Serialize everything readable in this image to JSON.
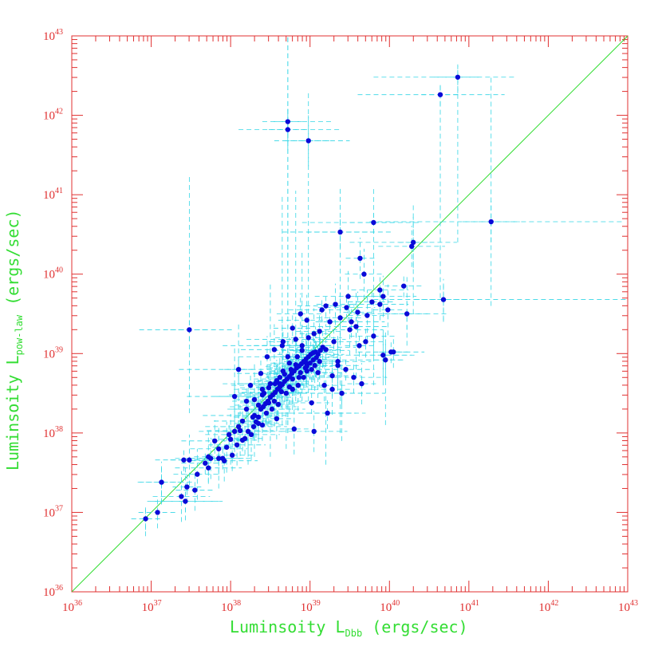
{
  "chart_data": {
    "type": "scatter",
    "title": "",
    "xlabel": {
      "main": "Luminsoity L",
      "sub": "Dbb",
      "tail": " (ergs/sec)"
    },
    "ylabel": {
      "main": "Luminsoity L",
      "sub": "pow-law",
      "tail": " (ergs/sec)"
    },
    "x_scale": "log",
    "y_scale": "log",
    "xlim_log10": [
      36,
      43
    ],
    "ylim_log10": [
      36,
      43
    ],
    "tick_base": "10",
    "x_tick_exponents": [
      "36",
      "37",
      "38",
      "39",
      "40",
      "41",
      "42",
      "43"
    ],
    "y_tick_exponents": [
      "36",
      "37",
      "38",
      "39",
      "40",
      "41",
      "42",
      "43"
    ],
    "reference_line": "y = x",
    "colors": {
      "frame": "#e03030",
      "labels": "#33dd33",
      "points": "#0a0ad8",
      "errorbars": "#33d6e6"
    },
    "points_log10": [
      [
        36.93,
        36.92
      ],
      [
        37.08,
        37.0
      ],
      [
        37.13,
        37.38
      ],
      [
        37.38,
        37.2
      ],
      [
        37.43,
        37.14
      ],
      [
        37.45,
        37.32
      ],
      [
        37.55,
        37.28
      ],
      [
        37.58,
        37.48
      ],
      [
        37.41,
        37.66
      ],
      [
        37.72,
        37.56
      ],
      [
        37.75,
        37.68
      ],
      [
        37.48,
        37.66
      ],
      [
        37.68,
        37.62
      ],
      [
        37.85,
        37.68
      ],
      [
        37.92,
        37.65
      ],
      [
        37.95,
        37.82
      ],
      [
        37.9,
        37.68
      ],
      [
        38.02,
        37.72
      ],
      [
        38.08,
        37.85
      ],
      [
        38.12,
        38.03
      ],
      [
        38.15,
        37.91
      ],
      [
        38.18,
        37.93
      ],
      [
        38.22,
        38.02
      ],
      [
        38.26,
        37.98
      ],
      [
        38.29,
        38.08
      ],
      [
        38.32,
        38.14
      ],
      [
        38.3,
        38.22
      ],
      [
        38.35,
        38.2
      ],
      [
        38.38,
        38.3
      ],
      [
        38.41,
        38.33
      ],
      [
        38.44,
        38.37
      ],
      [
        38.47,
        38.4
      ],
      [
        38.5,
        38.45
      ],
      [
        38.53,
        38.48
      ],
      [
        38.56,
        38.51
      ],
      [
        38.59,
        38.55
      ],
      [
        38.62,
        38.58
      ],
      [
        38.65,
        38.61
      ],
      [
        38.68,
        38.65
      ],
      [
        38.71,
        38.68
      ],
      [
        38.74,
        38.71
      ],
      [
        38.77,
        38.75
      ],
      [
        38.8,
        38.78
      ],
      [
        38.83,
        38.82
      ],
      [
        38.86,
        38.84
      ],
      [
        38.89,
        38.87
      ],
      [
        38.92,
        38.9
      ],
      [
        38.95,
        38.93
      ],
      [
        38.98,
        38.96
      ],
      [
        39.01,
        38.99
      ],
      [
        39.04,
        39.01
      ],
      [
        39.07,
        39.02
      ],
      [
        39.1,
        38.99
      ],
      [
        39.13,
        39.04
      ],
      [
        39.16,
        39.08
      ],
      [
        39.2,
        39.05
      ],
      [
        38.2,
        38.3
      ],
      [
        38.35,
        38.12
      ],
      [
        38.48,
        38.38
      ],
      [
        38.55,
        38.4
      ],
      [
        38.6,
        38.36
      ],
      [
        38.7,
        38.5
      ],
      [
        38.78,
        38.55
      ],
      [
        38.85,
        38.6
      ],
      [
        38.92,
        38.7
      ],
      [
        38.96,
        38.78
      ],
      [
        39.02,
        38.8
      ],
      [
        39.06,
        38.85
      ],
      [
        38.4,
        38.55
      ],
      [
        38.5,
        38.62
      ],
      [
        38.66,
        38.78
      ],
      [
        38.74,
        38.88
      ],
      [
        38.84,
        38.96
      ],
      [
        38.9,
        39.1
      ],
      [
        38.98,
        39.2
      ],
      [
        39.05,
        39.25
      ],
      [
        38.25,
        38.6
      ],
      [
        38.38,
        38.75
      ],
      [
        38.46,
        38.96
      ],
      [
        38.55,
        39.05
      ],
      [
        38.66,
        39.15
      ],
      [
        38.78,
        39.32
      ],
      [
        38.88,
        39.5
      ],
      [
        38.96,
        39.42
      ],
      [
        39.15,
        39.55
      ],
      [
        39.25,
        39.4
      ],
      [
        39.32,
        39.62
      ],
      [
        39.38,
        39.45
      ],
      [
        39.46,
        39.58
      ],
      [
        39.52,
        39.4
      ],
      [
        39.6,
        39.52
      ],
      [
        39.72,
        39.48
      ],
      [
        39.78,
        39.65
      ],
      [
        39.88,
        39.8
      ],
      [
        39.92,
        39.72
      ],
      [
        39.98,
        39.55
      ],
      [
        40.18,
        39.85
      ],
      [
        40.22,
        39.5
      ],
      [
        40.68,
        39.68
      ],
      [
        39.5,
        39.3
      ],
      [
        39.62,
        39.1
      ],
      [
        39.7,
        39.15
      ],
      [
        39.8,
        39.22
      ],
      [
        39.92,
        38.98
      ],
      [
        40.02,
        39.02
      ],
      [
        40.05,
        39.02
      ],
      [
        39.95,
        38.92
      ],
      [
        39.35,
        38.85
      ],
      [
        39.45,
        38.8
      ],
      [
        39.55,
        38.7
      ],
      [
        39.65,
        38.62
      ],
      [
        39.28,
        38.55
      ],
      [
        39.4,
        38.5
      ],
      [
        39.22,
        38.25
      ],
      [
        39.05,
        38.02
      ],
      [
        38.8,
        38.05
      ],
      [
        39.02,
        38.38
      ],
      [
        39.18,
        38.6
      ],
      [
        39.28,
        38.72
      ],
      [
        39.35,
        38.9
      ],
      [
        38.1,
        38.8
      ],
      [
        38.05,
        38.46
      ],
      [
        38.72,
        38.96
      ],
      [
        38.65,
        39.1
      ],
      [
        38.82,
        39.18
      ],
      [
        38.72,
        41.92
      ],
      [
        38.72,
        41.82
      ],
      [
        38.98,
        41.68
      ],
      [
        39.2,
        39.6
      ],
      [
        39.38,
        40.53
      ],
      [
        39.63,
        40.2
      ],
      [
        39.68,
        40.0
      ],
      [
        39.8,
        40.65
      ],
      [
        39.88,
        39.62
      ],
      [
        40.28,
        40.35
      ],
      [
        40.3,
        40.4
      ],
      [
        40.64,
        42.26
      ],
      [
        40.86,
        42.48
      ],
      [
        41.28,
        40.66
      ],
      [
        39.48,
        39.72
      ],
      [
        39.58,
        39.34
      ],
      [
        39.3,
        39.15
      ],
      [
        39.12,
        39.28
      ],
      [
        38.9,
        39.04
      ],
      [
        38.95,
        38.88
      ],
      [
        38.2,
        38.4
      ],
      [
        38.28,
        38.2
      ],
      [
        38.35,
        38.35
      ],
      [
        38.45,
        38.25
      ],
      [
        38.52,
        38.3
      ],
      [
        38.58,
        38.18
      ],
      [
        38.3,
        38.42
      ],
      [
        38.42,
        38.5
      ],
      [
        38.48,
        38.57
      ],
      [
        38.56,
        38.62
      ],
      [
        38.62,
        38.7
      ],
      [
        38.68,
        38.74
      ],
      [
        38.76,
        38.8
      ],
      [
        38.82,
        38.86
      ],
      [
        38.88,
        38.76
      ],
      [
        38.94,
        38.82
      ],
      [
        39.0,
        38.88
      ],
      [
        39.08,
        38.95
      ],
      [
        39.12,
        38.9
      ],
      [
        38.4,
        38.48
      ],
      [
        38.64,
        38.52
      ],
      [
        38.58,
        38.66
      ],
      [
        38.78,
        38.68
      ],
      [
        38.15,
        38.15
      ],
      [
        38.1,
        38.08
      ],
      [
        38.05,
        38.02
      ],
      [
        38.0,
        37.92
      ],
      [
        37.98,
        37.98
      ],
      [
        37.85,
        37.8
      ],
      [
        37.8,
        37.9
      ],
      [
        37.72,
        37.7
      ],
      [
        37.48,
        39.3
      ],
      [
        38.4,
        38.1
      ],
      [
        38.62,
        38.62
      ],
      [
        38.74,
        38.58
      ],
      [
        38.86,
        38.7
      ],
      [
        38.96,
        38.84
      ],
      [
        39.04,
        38.92
      ],
      [
        39.1,
        38.76
      ]
    ],
    "error_bars_log10": [
      [
        36.93,
        36.92,
        36.75,
        37.12,
        36.7,
        37.1
      ],
      [
        37.48,
        39.3,
        36.85,
        38.05,
        38.25,
        41.25
      ],
      [
        38.72,
        41.92,
        38.4,
        39.3,
        38.0,
        43.0
      ],
      [
        38.72,
        41.82,
        38.1,
        39.4,
        38.0,
        43.0
      ],
      [
        38.98,
        41.68,
        38.55,
        39.5,
        38.4,
        42.3
      ],
      [
        40.86,
        42.48,
        39.8,
        41.6,
        40.4,
        42.62
      ],
      [
        40.64,
        42.26,
        39.6,
        41.45,
        39.7,
        42.38
      ],
      [
        41.28,
        40.66,
        39.75,
        42.95,
        39.6,
        42.5
      ],
      [
        40.68,
        39.68,
        39.8,
        43.0,
        39.4,
        39.9
      ],
      [
        39.8,
        40.65,
        38.9,
        40.4,
        38.6,
        41.1
      ],
      [
        40.3,
        40.4,
        39.5,
        40.85,
        39.5,
        40.9
      ],
      [
        39.38,
        40.53,
        38.65,
        40.05,
        38.0,
        41.1
      ],
      [
        38.65,
        39.1,
        37.9,
        39.3,
        38.1,
        41.0
      ],
      [
        38.82,
        39.18,
        38.2,
        39.45,
        38.4,
        41.05
      ],
      [
        38.1,
        38.8,
        37.35,
        38.7,
        37.9,
        39.4
      ],
      [
        37.43,
        37.14,
        36.95,
        37.9,
        36.9,
        37.6
      ],
      [
        37.13,
        37.38,
        36.85,
        37.55,
        37.1,
        37.6
      ],
      [
        38.05,
        38.46,
        37.45,
        38.7,
        37.9,
        39.1
      ],
      [
        39.95,
        38.92,
        39.2,
        40.2,
        38.1,
        39.3
      ],
      [
        40.22,
        39.5,
        39.55,
        40.75,
        39.1,
        40.0
      ],
      [
        39.92,
        38.98,
        39.25,
        40.35,
        38.6,
        39.3
      ],
      [
        38.9,
        39.1,
        38.4,
        39.3,
        38.4,
        40.3
      ],
      [
        38.5,
        38.62,
        37.9,
        38.95,
        37.7,
        39.9
      ],
      [
        38.3,
        38.22,
        37.65,
        38.7,
        37.7,
        38.9
      ],
      [
        38.7,
        38.5,
        38.1,
        39.1,
        37.8,
        38.9
      ],
      [
        39.2,
        38.25,
        38.55,
        39.7,
        37.6,
        38.7
      ],
      [
        39.4,
        38.5,
        38.7,
        39.95,
        37.9,
        38.9
      ],
      [
        37.85,
        37.68,
        37.3,
        38.25,
        37.3,
        38.1
      ],
      [
        38.22,
        38.02,
        37.6,
        38.65,
        37.6,
        38.6
      ],
      [
        39.58,
        39.34,
        38.9,
        40.0,
        38.7,
        39.8
      ]
    ]
  }
}
